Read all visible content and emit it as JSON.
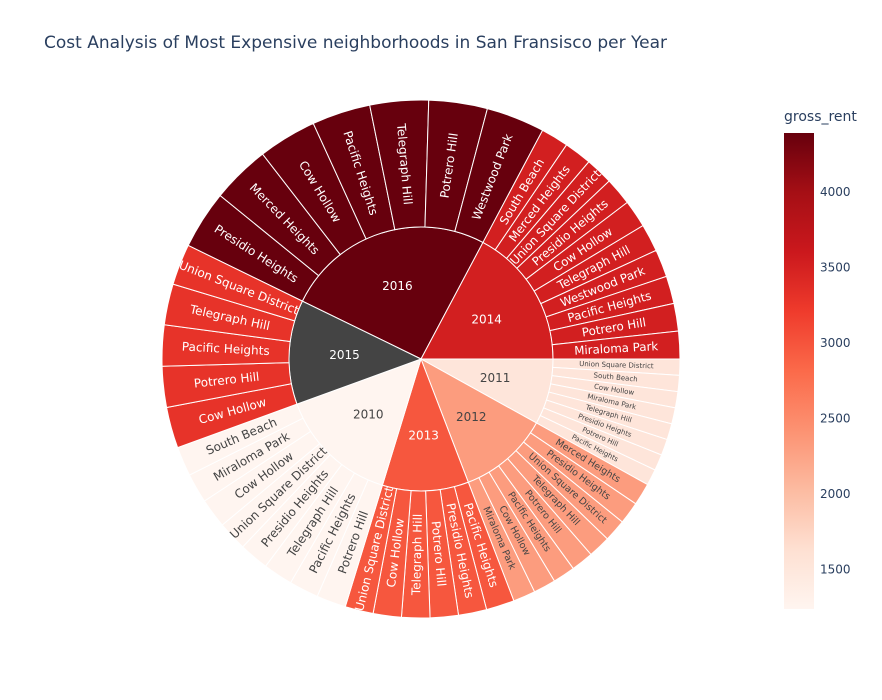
{
  "title": "Cost Analysis of Most Expensive neighborhoods in San Fransisco per Year",
  "chart_data": {
    "type": "sunburst",
    "title": "Cost Analysis of Most Expensive neighborhoods in San Fransisco per Year",
    "colorbar": {
      "title": "gross_rent",
      "colorscale": "Reds",
      "range": [
        1239,
        4390
      ],
      "ticks": [
        1500,
        2000,
        2500,
        3000,
        3500,
        4000
      ]
    },
    "years": [
      {
        "label": "2016",
        "value": 4390,
        "children": [
          "Presidio Heights",
          "Merced Heights",
          "Cow Hollow",
          "Pacific Heights",
          "Telegraph Hill",
          "Potrero Hill",
          "Westwood Park"
        ]
      },
      {
        "label": "2014",
        "value": 3528,
        "children": [
          "South Beach",
          "Merced Heights",
          "Union Square District",
          "Presidio Heights",
          "Cow Hollow",
          "Telegraph Hill",
          "Westwood Park",
          "Pacific Heights",
          "Potrero Hill",
          "Miraloma Park"
        ]
      },
      {
        "label": "2011",
        "value": 1530,
        "children": [
          "Union Square District",
          "South Beach",
          "Cow Hollow",
          "Miraloma Park",
          "Telegraph Hill",
          "Presidio Heights",
          "Potrero Hill",
          "Pacific Heights"
        ]
      },
      {
        "label": "2012",
        "value": 2324,
        "children": [
          "Merced Heights",
          "Presidio Heights",
          "Union Square District",
          "Telegraph Hill",
          "Potrero Hill",
          "Pacific Heights",
          "Cow Hollow",
          "Miraloma Park"
        ]
      },
      {
        "label": "2013",
        "value": 2971,
        "children": [
          "Pacific Heights",
          "Presidio Heights",
          "Potrero Hill",
          "Telegraph Hill",
          "Cow Hollow",
          "Union Square District"
        ]
      },
      {
        "label": "2010",
        "value": 1239,
        "children": [
          "Potrero Hill",
          "Pacific Heights",
          "Telegraph Hill",
          "Presidio Heights",
          "Union Square District",
          "Cow Hollow",
          "Miraloma Park",
          "South Beach"
        ]
      },
      {
        "label": "2015",
        "value": 3739,
        "children": [
          "Cow Hollow",
          "Potrero Hill",
          "Pacific Heights",
          "Telegraph Hill",
          "Union Square District"
        ]
      }
    ]
  }
}
